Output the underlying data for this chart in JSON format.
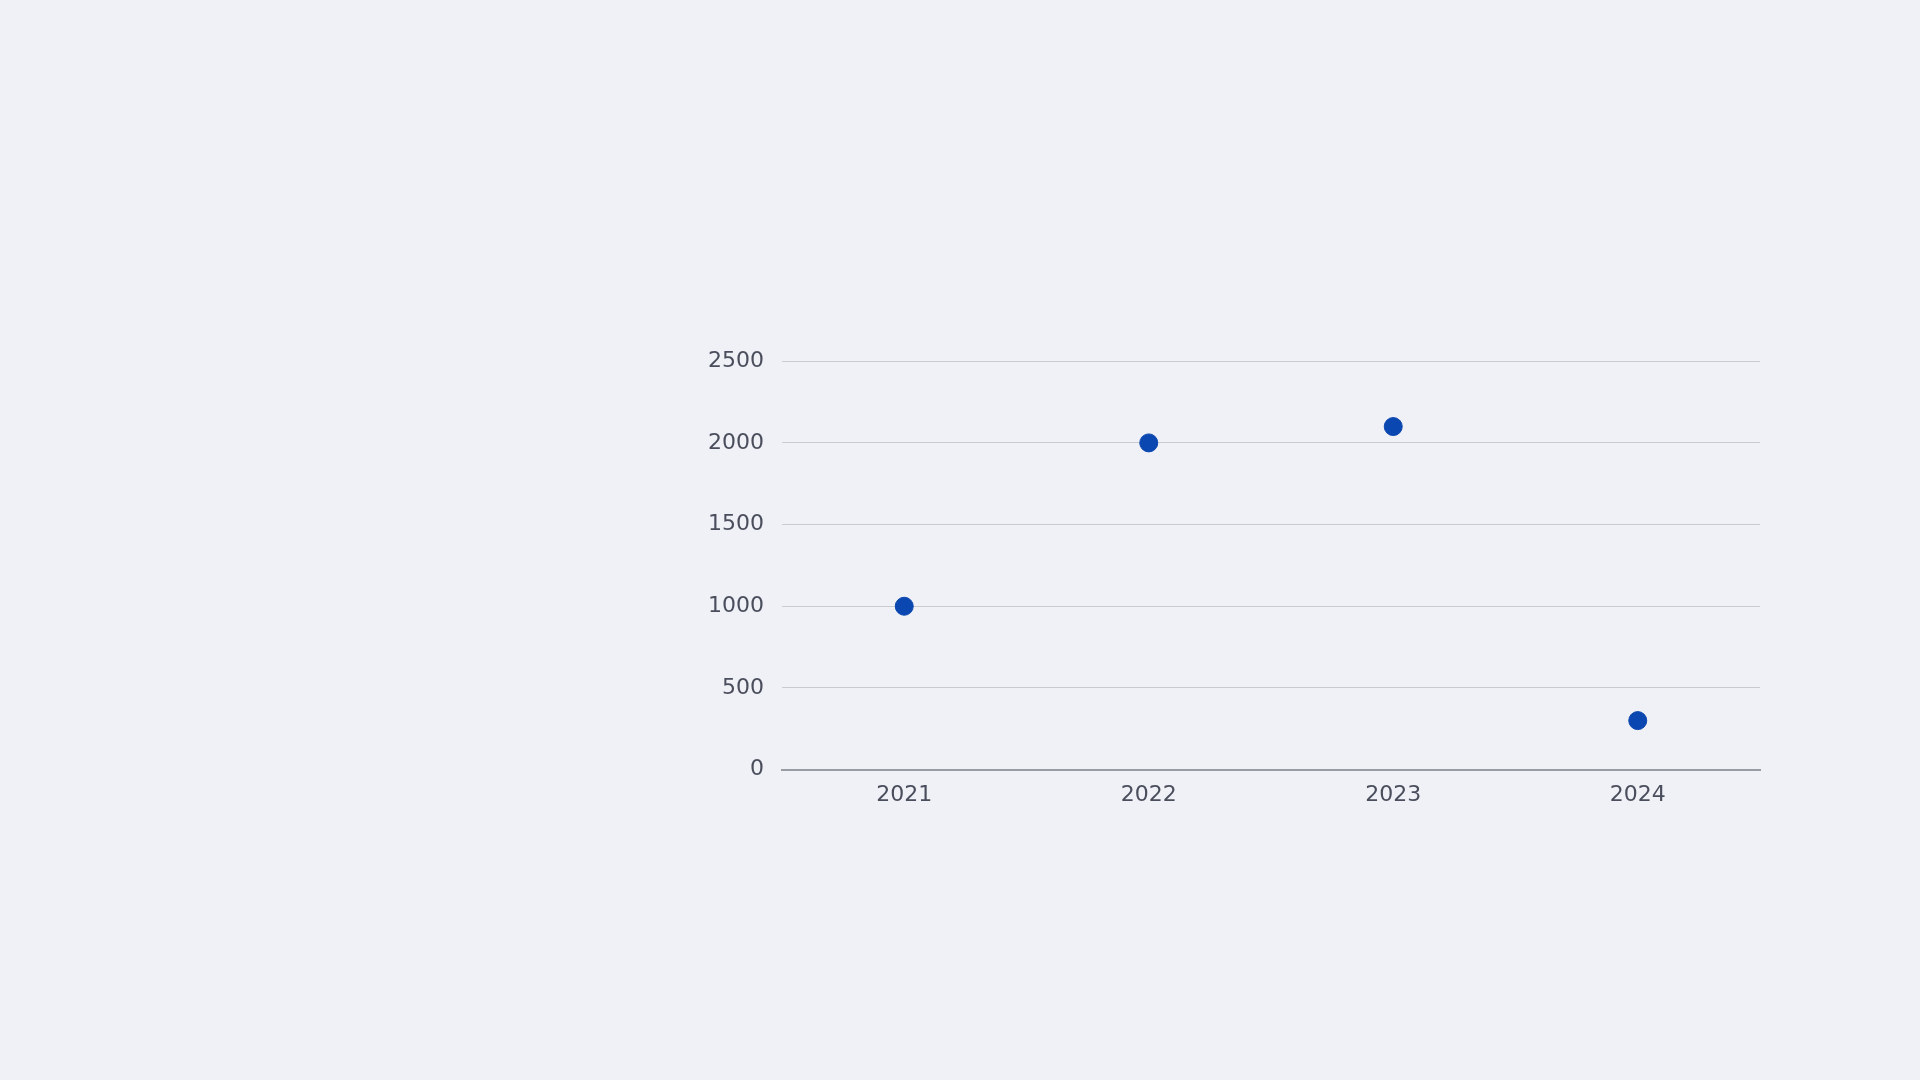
{
  "chart_data": {
    "type": "scatter",
    "categories": [
      "2021",
      "2022",
      "2023",
      "2024"
    ],
    "series": [
      {
        "color": "#0b47b0",
        "values": [
          1000,
          2000,
          2100,
          300
        ]
      }
    ],
    "ylim": [
      0,
      2500
    ],
    "yticks": [
      0,
      500,
      1000,
      1500,
      2000,
      2500
    ],
    "grid": "y",
    "legend": false,
    "marker": "circle"
  }
}
